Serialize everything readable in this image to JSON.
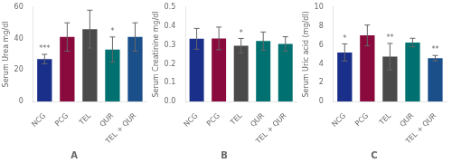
{
  "chart_data": [
    {
      "type": "bar",
      "title": "A",
      "ylabel": "Serum Urea mg/dl",
      "categories": [
        "NCG",
        "PCG",
        "TEL",
        "QUR",
        "TEL + QUR"
      ],
      "values": [
        27,
        41,
        46,
        33,
        41
      ],
      "errors": [
        3,
        9,
        12,
        8,
        9
      ],
      "colors": [
        "#1a2f8a",
        "#8b0a3d",
        "#4a4a4a",
        "#007070",
        "#1a4f8a"
      ],
      "annotations": [
        {
          "category": "NCG",
          "text": "***"
        },
        {
          "category": "QUR",
          "text": "*"
        }
      ],
      "ylim": [
        0,
        60
      ],
      "yticks": [
        0,
        20,
        40,
        60
      ],
      "grid": false
    },
    {
      "type": "bar",
      "title": "B",
      "ylabel": "Serum Creatinine mg/dl",
      "categories": [
        "NCG",
        "PCG",
        "TEL",
        "QUR",
        "TEL + QUR"
      ],
      "values": [
        0.332,
        0.334,
        0.296,
        0.32,
        0.305
      ],
      "errors": [
        0.055,
        0.06,
        0.038,
        0.048,
        0.038
      ],
      "colors": [
        "#1a2f8a",
        "#8b0a3d",
        "#4a4a4a",
        "#007070",
        "#007070"
      ],
      "annotations": [
        {
          "category": "TEL",
          "text": "*"
        }
      ],
      "ylim": [
        0,
        0.5
      ],
      "yticks": [
        {
          "value": 0,
          "label": "0.0"
        },
        0.1,
        0.2,
        0.3,
        0.4,
        0.5
      ],
      "grid": false
    },
    {
      "type": "bar",
      "title": "C",
      "ylabel": "Serum Uric acid (mg/dl)",
      "categories": [
        "NCG",
        "PCG",
        "TEL",
        "QUR",
        "TEL + QUR"
      ],
      "values": [
        5.2,
        7.0,
        4.75,
        6.25,
        4.6
      ],
      "errors": [
        0.9,
        1.1,
        1.4,
        0.45,
        0.28
      ],
      "colors": [
        "#1a2f8a",
        "#8b0a3d",
        "#4a4a4a",
        "#007070",
        "#1a4f8a"
      ],
      "annotations": [
        {
          "category": "NCG",
          "text": "*"
        },
        {
          "category": "TEL",
          "text": "**"
        },
        {
          "category": "TEL + QUR",
          "text": "**"
        }
      ],
      "ylim": [
        0,
        10
      ],
      "yticks": [
        0,
        2,
        4,
        6,
        8,
        10
      ],
      "grid": false
    }
  ]
}
